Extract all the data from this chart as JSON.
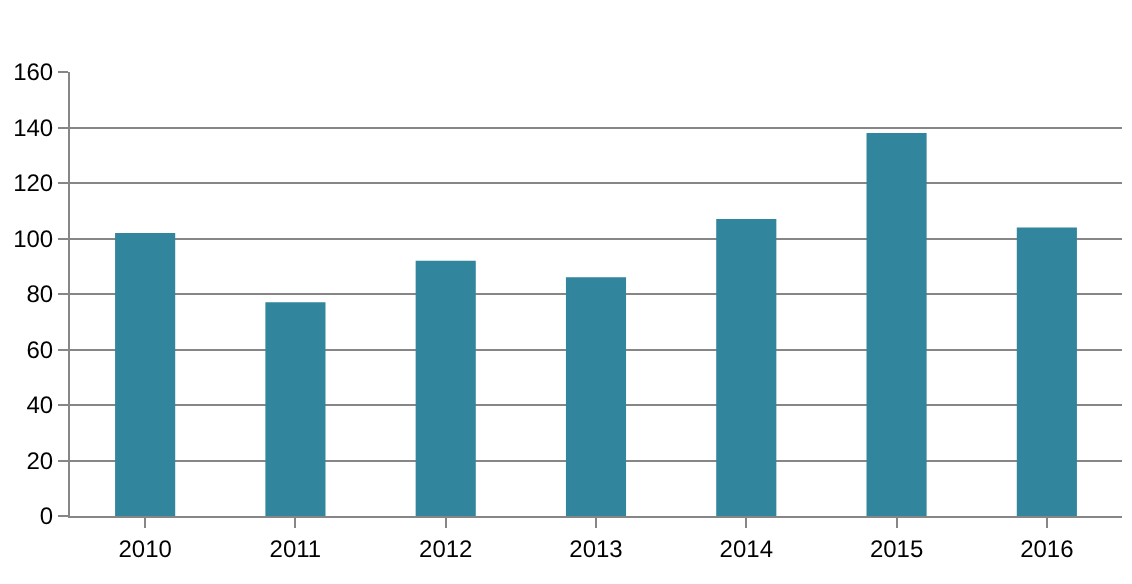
{
  "chart_data": {
    "type": "bar",
    "categories": [
      "2010",
      "2011",
      "2012",
      "2013",
      "2014",
      "2015",
      "2016"
    ],
    "values": [
      102,
      77,
      92,
      86,
      107,
      138,
      104
    ],
    "color": "#31859c",
    "ylim": [
      0,
      160
    ],
    "yticks": [
      0,
      20,
      40,
      60,
      80,
      100,
      120,
      140,
      160
    ],
    "grid": "y",
    "legend": false
  }
}
